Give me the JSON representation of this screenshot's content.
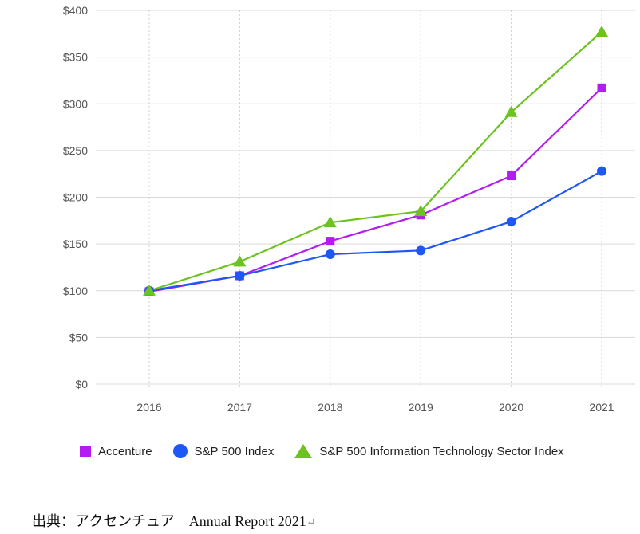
{
  "chart_data": {
    "type": "line",
    "x": [
      "2016",
      "2017",
      "2018",
      "2019",
      "2020",
      "2021"
    ],
    "ylim": [
      0,
      400
    ],
    "yticks": [
      0,
      50,
      100,
      150,
      200,
      250,
      300,
      350,
      400
    ],
    "ytick_labels": [
      "$0",
      "$50",
      "$100",
      "$150",
      "$200",
      "$250",
      "$300",
      "$350",
      "$400"
    ],
    "grid": "dotted vertical and horizontal",
    "legend_position": "bottom",
    "series": [
      {
        "name": "Accenture",
        "marker": "square",
        "color": "#b31cf0",
        "values": [
          99,
          116,
          153,
          181,
          223,
          317
        ]
      },
      {
        "name": "S&P 500 Index",
        "marker": "circle",
        "color": "#1f57f5",
        "values": [
          100,
          116,
          139,
          143,
          174,
          228
        ]
      },
      {
        "name": "S&P 500 Information Technology Sector Index",
        "marker": "triangle",
        "color": "#6cc21f",
        "values": [
          100,
          131,
          173,
          185,
          291,
          377
        ]
      }
    ]
  },
  "caption": {
    "text": "出典：アクセンチュア　Annual Report 2021",
    "return_mark": "↵"
  }
}
